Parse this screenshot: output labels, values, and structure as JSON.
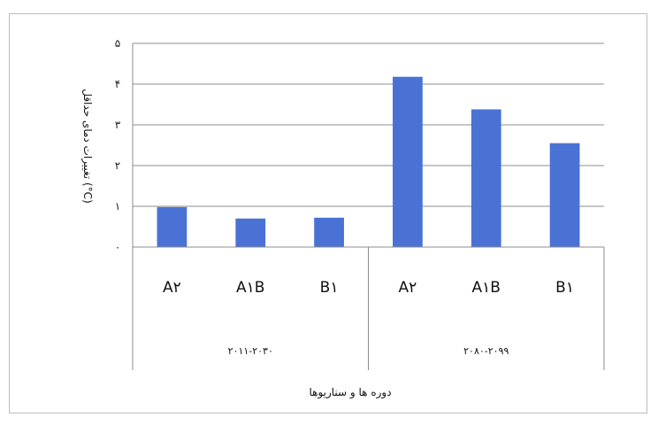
{
  "chart_data": {
    "type": "bar",
    "ylabel": "تغییرات دمای حداقل (°C)",
    "xlabel": "دوره ها و سناریوها",
    "ylim": [
      0,
      5
    ],
    "yticks": [
      "۰",
      "۱",
      "۲",
      "۳",
      "۴",
      "۵"
    ],
    "grid": true,
    "color": "#4A72D5",
    "groups": [
      {
        "label": "۲۰۱۱-۲۰۳۰",
        "categories": [
          "A۲",
          "A۱B",
          "B۱"
        ],
        "values": [
          0.98,
          0.7,
          0.72
        ]
      },
      {
        "label": "۲۰۸۰-۲۰۹۹",
        "categories": [
          "A۲",
          "A۱B",
          "B۱"
        ],
        "values": [
          4.18,
          3.38,
          2.55
        ]
      }
    ]
  }
}
